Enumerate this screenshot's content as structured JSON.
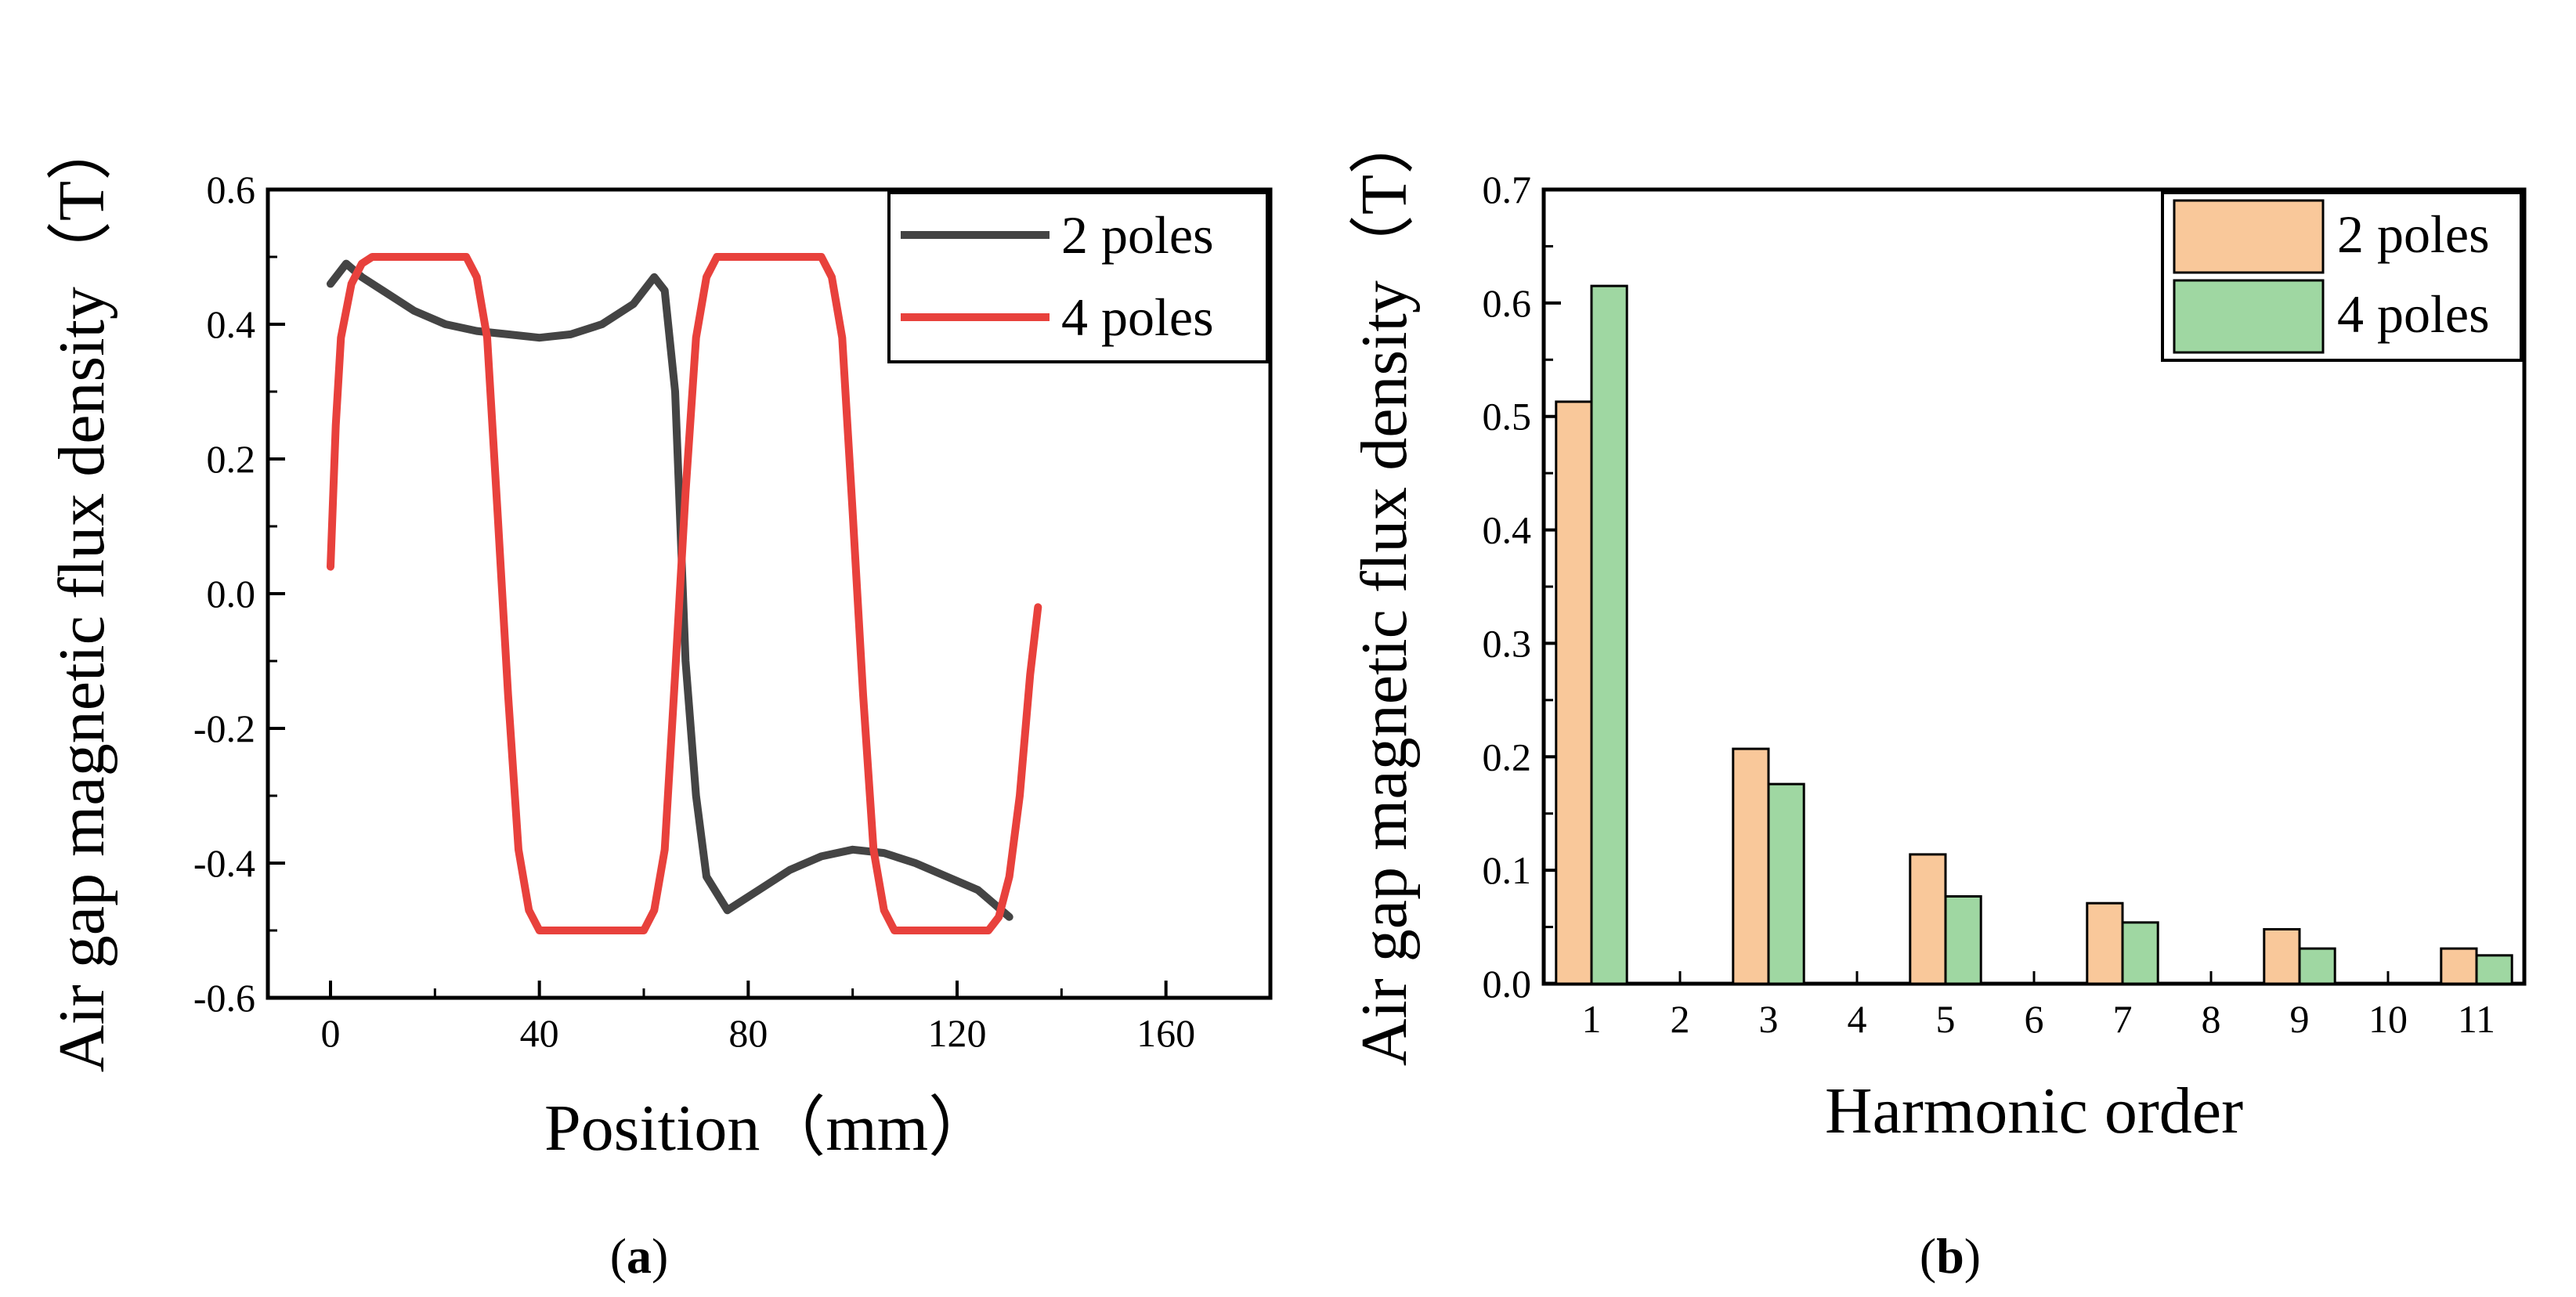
{
  "chart_data": [
    {
      "type": "line",
      "panel_label": "a",
      "xlabel": "Position（mm）",
      "ylabel": "Air gap magnetic flux density（T）",
      "xlim": [
        -12,
        180
      ],
      "ylim": [
        -0.6,
        0.6
      ],
      "xticks": [
        "0",
        "40",
        "80",
        "120",
        "160"
      ],
      "yticks": [
        "-0.6",
        "-0.4",
        "-0.2",
        "0.0",
        "0.2",
        "0.4",
        "0.6"
      ],
      "legend_position": "top-right",
      "series": [
        {
          "name": "2 poles",
          "color": "#444444",
          "x": [
            0,
            3,
            6,
            10,
            16,
            22,
            28,
            34,
            40,
            46,
            52,
            58,
            62,
            64,
            66,
            67,
            68,
            70,
            72,
            76,
            82,
            88,
            94,
            100,
            106,
            112,
            118,
            124,
            130
          ],
          "y": [
            0.46,
            0.49,
            0.47,
            0.45,
            0.42,
            0.4,
            0.39,
            0.385,
            0.38,
            0.385,
            0.4,
            0.43,
            0.47,
            0.45,
            0.3,
            0.1,
            -0.1,
            -0.3,
            -0.42,
            -0.47,
            -0.44,
            -0.41,
            -0.39,
            -0.38,
            -0.385,
            -0.4,
            -0.42,
            -0.44,
            -0.48
          ]
        },
        {
          "name": "4 poles",
          "color": "#e8413c",
          "x": [
            0,
            1,
            2,
            4,
            6,
            8,
            26,
            28,
            30,
            32,
            34,
            36,
            38,
            40,
            60,
            62,
            64,
            66,
            68,
            70,
            72,
            74,
            94,
            96,
            98,
            100,
            102,
            104,
            106,
            108,
            126,
            128,
            130,
            132,
            134,
            135.5
          ],
          "y": [
            0.04,
            0.25,
            0.38,
            0.46,
            0.49,
            0.5,
            0.5,
            0.47,
            0.38,
            0.12,
            -0.15,
            -0.38,
            -0.47,
            -0.5,
            -0.5,
            -0.47,
            -0.38,
            -0.12,
            0.15,
            0.38,
            0.47,
            0.5,
            0.5,
            0.47,
            0.38,
            0.12,
            -0.15,
            -0.38,
            -0.47,
            -0.5,
            -0.5,
            -0.48,
            -0.42,
            -0.3,
            -0.12,
            -0.02
          ]
        }
      ]
    },
    {
      "type": "bar",
      "panel_label": "b",
      "xlabel": "Harmonic order",
      "ylabel": "Air gap magnetic flux density（T）",
      "ylim": [
        0,
        0.7
      ],
      "yticks": [
        "0.0",
        "0.1",
        "0.2",
        "0.3",
        "0.4",
        "0.5",
        "0.6",
        "0.7"
      ],
      "categories": [
        "1",
        "2",
        "3",
        "4",
        "5",
        "6",
        "7",
        "8",
        "9",
        "10",
        "11"
      ],
      "legend_position": "top-right",
      "series": [
        {
          "name": "2 poles",
          "color": "#f9c89a",
          "values": [
            0.513,
            0,
            0.207,
            0,
            0.114,
            0,
            0.071,
            0,
            0.048,
            0,
            0.031
          ]
        },
        {
          "name": "4 poles",
          "color": "#9fd7a2",
          "values": [
            0.615,
            0,
            0.176,
            0,
            0.077,
            0,
            0.054,
            0,
            0.031,
            0,
            0.025
          ]
        }
      ]
    }
  ]
}
